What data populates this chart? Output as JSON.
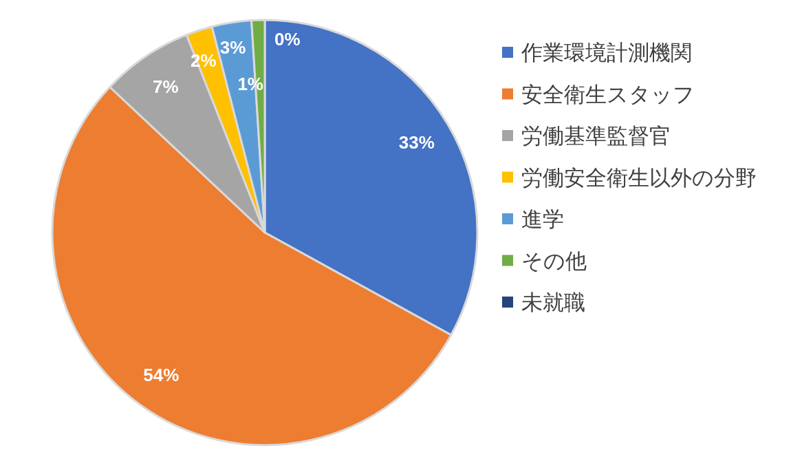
{
  "chart_data": {
    "type": "pie",
    "legend": "right",
    "value_labels": [
      "33%",
      "54%",
      "7%",
      "2%",
      "3%",
      "1%",
      "0%"
    ],
    "categories": [
      "作業環境計測機関",
      "安全衛生スタッフ",
      "労働基準監督官",
      "労働安全衛生以外の分野",
      "進学",
      "その他",
      "未就職"
    ],
    "values": [
      33,
      54,
      7,
      2,
      3,
      1,
      0
    ],
    "colors": [
      "#4472c4",
      "#ed7d31",
      "#a5a5a5",
      "#ffc000",
      "#5b9bd5",
      "#70ad47",
      "#264478"
    ]
  }
}
